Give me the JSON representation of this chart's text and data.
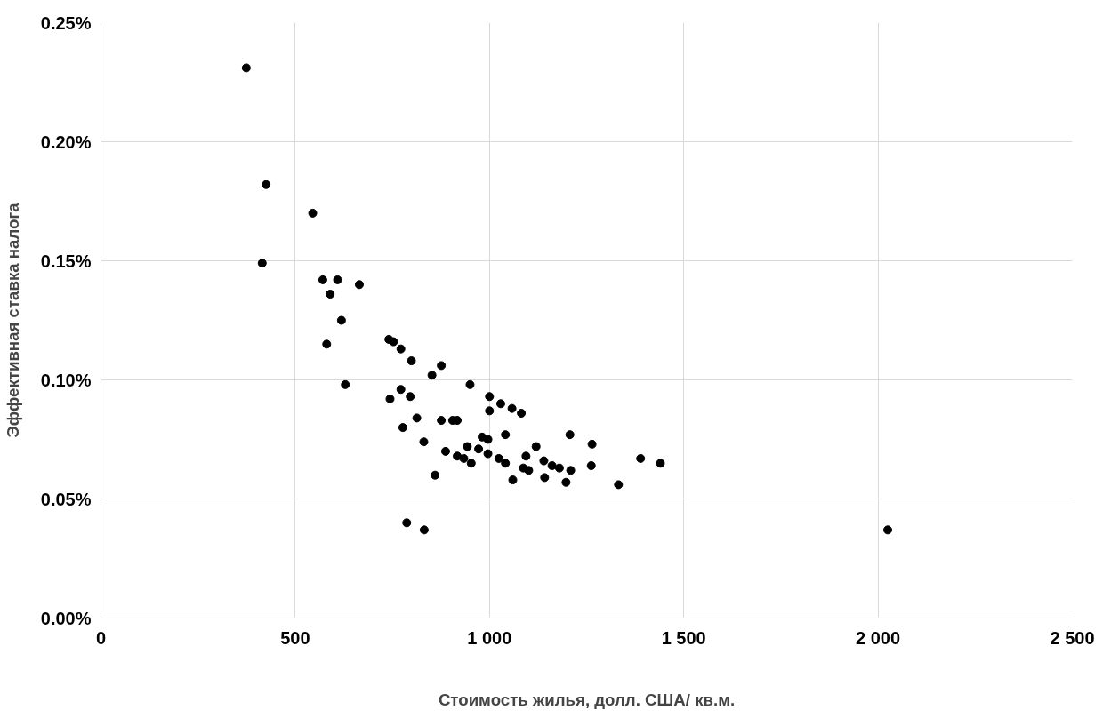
{
  "chart_data": {
    "type": "scatter",
    "xlabel": "Стоимость жилья, долл. США/ кв.м.",
    "ylabel": "Эффективная ставка налога",
    "x": [
      374,
      425,
      415,
      545,
      571,
      609,
      590,
      665,
      619,
      581,
      629,
      741,
      753,
      772,
      799,
      876,
      852,
      744,
      772,
      796,
      777,
      813,
      950,
      876,
      905,
      917,
      831,
      887,
      860,
      917,
      934,
      943,
      953,
      972,
      981,
      996,
      1000,
      1000,
      996,
      1029,
      1058,
      1082,
      1041,
      1024,
      1041,
      1060,
      1094,
      1087,
      1101,
      1120,
      1140,
      1142,
      1161,
      1180,
      1197,
      1207,
      1209,
      1264,
      1262,
      1332,
      1389,
      1440,
      787,
      832,
      2025
    ],
    "values": [
      0.231,
      0.182,
      0.149,
      0.17,
      0.142,
      0.142,
      0.136,
      0.14,
      0.125,
      0.115,
      0.098,
      0.117,
      0.116,
      0.113,
      0.108,
      0.106,
      0.102,
      0.092,
      0.096,
      0.093,
      0.08,
      0.084,
      0.098,
      0.083,
      0.083,
      0.083,
      0.074,
      0.07,
      0.06,
      0.068,
      0.067,
      0.072,
      0.065,
      0.071,
      0.076,
      0.075,
      0.093,
      0.087,
      0.069,
      0.09,
      0.088,
      0.086,
      0.077,
      0.067,
      0.065,
      0.058,
      0.068,
      0.063,
      0.062,
      0.072,
      0.066,
      0.059,
      0.064,
      0.063,
      0.057,
      0.077,
      0.062,
      0.073,
      0.064,
      0.056,
      0.067,
      0.065,
      0.04,
      0.037,
      0.037
    ],
    "color": "#000000",
    "marker": "circle",
    "grid": true,
    "xlim": [
      0,
      2500
    ],
    "xticks": [
      0,
      500,
      {
        "value": 1000,
        "label": "1 000"
      },
      {
        "value": 1500,
        "label": "1 500"
      },
      {
        "value": 2000,
        "label": "2 000"
      },
      {
        "value": 2500,
        "label": "2 500"
      }
    ],
    "ylim": [
      0,
      0.25
    ],
    "yticks": [
      {
        "value": 0,
        "label": "0.00%"
      },
      {
        "value": 0.05,
        "label": "0.05%"
      },
      {
        "value": 0.1,
        "label": "0.10%"
      },
      {
        "value": 0.15,
        "label": "0.15%"
      },
      {
        "value": 0.2,
        "label": "0.20%"
      },
      {
        "value": 0.25,
        "label": "0.25%"
      }
    ]
  }
}
